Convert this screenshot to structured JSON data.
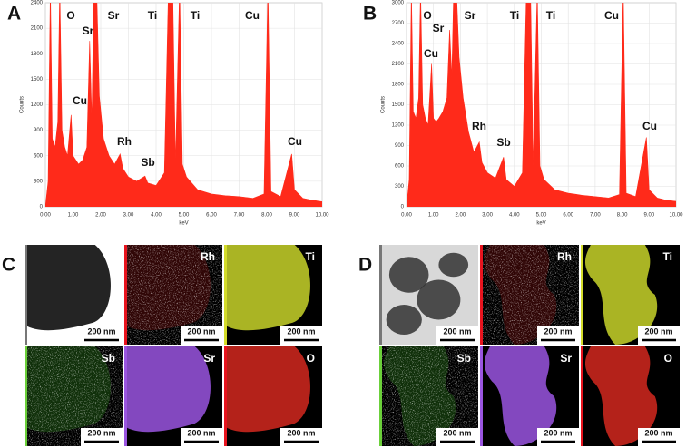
{
  "chart_data": [
    {
      "type": "area",
      "panel": "A",
      "xlabel": "keV",
      "ylabel": "Counts",
      "color": "#ff2a1a",
      "grid": true,
      "x": [
        0,
        0.1,
        0.18,
        0.25,
        0.35,
        0.45,
        0.52,
        0.6,
        0.7,
        0.8,
        0.93,
        1.0,
        1.1,
        1.2,
        1.35,
        1.5,
        1.6,
        1.68,
        1.75,
        1.85,
        1.95,
        2.1,
        2.3,
        2.5,
        2.7,
        2.8,
        3.0,
        3.3,
        3.6,
        3.7,
        4.0,
        4.3,
        4.45,
        4.6,
        4.7,
        4.85,
        4.95,
        5.1,
        5.5,
        6.0,
        6.5,
        7.0,
        7.5,
        7.9,
        8.04,
        8.15,
        8.5,
        8.9,
        9.0,
        9.3,
        9.6,
        10.0
      ],
      "values": [
        0,
        300,
        2600,
        800,
        700,
        1000,
        2600,
        900,
        700,
        600,
        1080,
        600,
        550,
        500,
        550,
        700,
        1950,
        1000,
        2600,
        2600,
        1300,
        800,
        600,
        500,
        620,
        450,
        350,
        300,
        360,
        280,
        250,
        400,
        2600,
        2600,
        500,
        2600,
        500,
        350,
        200,
        150,
        130,
        120,
        100,
        150,
        2600,
        180,
        120,
        620,
        200,
        100,
        80,
        60
      ],
      "xlim": [
        0,
        10
      ],
      "ylim": [
        0,
        2400
      ],
      "xticks": [
        {
          "value": 0,
          "label": "0.00"
        },
        {
          "value": 1,
          "label": "1.00"
        },
        {
          "value": 2,
          "label": "2.00"
        },
        {
          "value": 3,
          "label": "3.00"
        },
        {
          "value": 4,
          "label": "4.00"
        },
        {
          "value": 5,
          "label": "5.00"
        },
        {
          "value": 6,
          "label": "6.00"
        },
        {
          "value": 7,
          "label": "7.00"
        },
        {
          "value": 8,
          "label": "8.00"
        },
        {
          "value": 9,
          "label": "9.00"
        },
        {
          "value": 10,
          "label": "10.00"
        }
      ],
      "yticks": [
        0,
        300,
        600,
        900,
        1200,
        1500,
        1800,
        2100,
        2400
      ],
      "annotations": [
        "O",
        "Sr",
        "Sr",
        "Ti",
        "Ti",
        "Cu",
        "Cu",
        "Rh",
        "Sb",
        "Cu"
      ]
    },
    {
      "type": "area",
      "panel": "B",
      "xlabel": "keV",
      "ylabel": "Counts",
      "color": "#ff2a1a",
      "grid": true,
      "x": [
        0,
        0.1,
        0.18,
        0.25,
        0.35,
        0.45,
        0.52,
        0.6,
        0.7,
        0.8,
        0.93,
        1.0,
        1.1,
        1.2,
        1.35,
        1.5,
        1.6,
        1.68,
        1.75,
        1.85,
        1.95,
        2.1,
        2.3,
        2.5,
        2.7,
        2.8,
        3.0,
        3.3,
        3.6,
        3.7,
        4.0,
        4.3,
        4.45,
        4.6,
        4.7,
        4.85,
        4.95,
        5.1,
        5.5,
        6.0,
        6.5,
        7.0,
        7.5,
        7.9,
        8.04,
        8.15,
        8.5,
        8.9,
        9.0,
        9.3,
        9.6,
        10.0
      ],
      "values": [
        0,
        400,
        3200,
        1400,
        1300,
        1600,
        3200,
        1500,
        1300,
        1200,
        2100,
        1300,
        1250,
        1300,
        1400,
        1600,
        2600,
        1900,
        3200,
        3200,
        2200,
        1600,
        1100,
        800,
        950,
        650,
        500,
        420,
        730,
        400,
        300,
        500,
        3200,
        3200,
        600,
        3200,
        600,
        400,
        250,
        200,
        170,
        150,
        130,
        180,
        3200,
        200,
        150,
        1020,
        250,
        130,
        100,
        80
      ],
      "xlim": [
        0,
        10
      ],
      "ylim": [
        0,
        3000
      ],
      "xticks": [
        {
          "value": 0,
          "label": "0.00"
        },
        {
          "value": 1,
          "label": "1.00"
        },
        {
          "value": 2,
          "label": "2.00"
        },
        {
          "value": 3,
          "label": "3.00"
        },
        {
          "value": 4,
          "label": "4.00"
        },
        {
          "value": 5,
          "label": "5.00"
        },
        {
          "value": 6,
          "label": "6.00"
        },
        {
          "value": 7,
          "label": "7.00"
        },
        {
          "value": 8,
          "label": "8.00"
        },
        {
          "value": 9,
          "label": "9.00"
        },
        {
          "value": 10,
          "label": "10.00"
        }
      ],
      "yticks": [
        0,
        300,
        600,
        900,
        1200,
        1500,
        1800,
        2100,
        2400,
        2700,
        3000
      ],
      "annotations": [
        "O",
        "Sr",
        "Sr",
        "Cu",
        "Ti",
        "Ti",
        "Cu",
        "Rh",
        "Sb",
        "Cu"
      ]
    }
  ],
  "panels": [
    {
      "label": "C",
      "tiles": [
        {
          "scale_bar": "200 nm"
        },
        {
          "element": "Rh",
          "scale_bar": "200 nm"
        },
        {
          "element": "Ti",
          "scale_bar": "200 nm"
        },
        {
          "element": "Sb",
          "scale_bar": "200 nm"
        },
        {
          "element": "Sr",
          "scale_bar": "200 nm"
        },
        {
          "element": "O",
          "scale_bar": "200 nm"
        }
      ]
    },
    {
      "label": "D",
      "tiles": [
        {
          "scale_bar": "200 nm"
        },
        {
          "element": "Rh",
          "scale_bar": "200 nm"
        },
        {
          "element": "Ti",
          "scale_bar": "200 nm"
        },
        {
          "element": "Sb",
          "scale_bar": "200 nm"
        },
        {
          "element": "Sr",
          "scale_bar": "200 nm"
        },
        {
          "element": "O",
          "scale_bar": "200 nm"
        }
      ]
    }
  ]
}
